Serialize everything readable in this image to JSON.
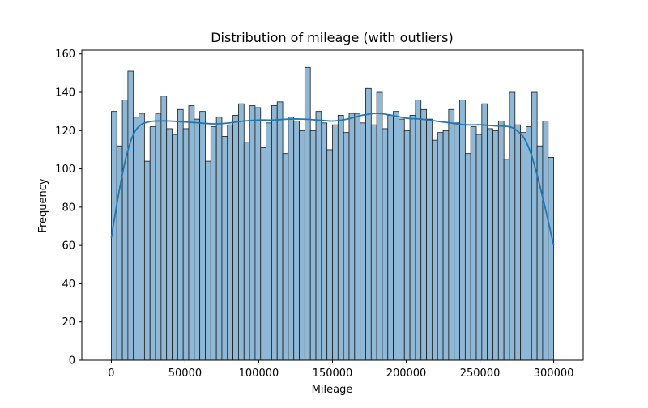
{
  "chart_data": {
    "type": "bar",
    "title": "Distribution of mileage (with outliers)",
    "xlabel": "Mileage",
    "ylabel": "Frequency",
    "xlim": [
      -20000,
      320000
    ],
    "ylim": [
      0,
      162
    ],
    "x_ticks": [
      {
        "value": 0,
        "label": "0"
      },
      {
        "value": 50000,
        "label": "50000"
      },
      {
        "value": 100000,
        "label": "100000"
      },
      {
        "value": 150000,
        "label": "150000"
      },
      {
        "value": 200000,
        "label": "200000"
      },
      {
        "value": 250000,
        "label": "250000"
      },
      {
        "value": 300000,
        "label": "300000"
      }
    ],
    "y_ticks": [
      {
        "value": 0,
        "label": "0"
      },
      {
        "value": 20,
        "label": "20"
      },
      {
        "value": 40,
        "label": "40"
      },
      {
        "value": 60,
        "label": "60"
      },
      {
        "value": 80,
        "label": "80"
      },
      {
        "value": 100,
        "label": "100"
      },
      {
        "value": 120,
        "label": "120"
      },
      {
        "value": 140,
        "label": "140"
      },
      {
        "value": 160,
        "label": "160"
      }
    ],
    "grid": false,
    "bin_start": 0,
    "bin_width": 3750,
    "counts": [
      130,
      112,
      136,
      151,
      127,
      129,
      104,
      122,
      129,
      138,
      121,
      118,
      131,
      121,
      133,
      126,
      130,
      104,
      122,
      127,
      117,
      123,
      128,
      134,
      114,
      133,
      132,
      111,
      124,
      133,
      135,
      108,
      127,
      125,
      120,
      153,
      120,
      130,
      124,
      110,
      123,
      128,
      119,
      129,
      129,
      124,
      142,
      123,
      140,
      121,
      128,
      130,
      126,
      120,
      128,
      136,
      131,
      126,
      115,
      119,
      120,
      131,
      124,
      136,
      108,
      122,
      118,
      134,
      121,
      120,
      125,
      105,
      140,
      123,
      119,
      122,
      140,
      112,
      125,
      106
    ],
    "kde": {
      "x": [
        0,
        5000,
        10000,
        15000,
        20000,
        25000,
        30000,
        40000,
        50000,
        60000,
        70000,
        80000,
        90000,
        100000,
        110000,
        120000,
        130000,
        140000,
        150000,
        160000,
        170000,
        180000,
        190000,
        200000,
        210000,
        220000,
        230000,
        240000,
        250000,
        260000,
        270000,
        275000,
        280000,
        285000,
        290000,
        295000,
        300000
      ],
      "y": [
        64,
        87,
        106,
        118,
        123,
        124.5,
        125,
        125,
        124.5,
        124,
        123.5,
        124,
        125,
        125.5,
        125.5,
        126,
        126,
        125.5,
        125,
        126,
        128,
        129,
        128,
        126.5,
        126,
        125,
        124,
        123,
        123,
        122.5,
        122,
        120,
        116,
        107,
        93,
        77,
        60
      ]
    },
    "colors": {
      "bar_fill": "#8fb8d6",
      "bar_edge": "#1a1a1a",
      "kde_line": "#1f77b4",
      "axes": "#000000",
      "background": "#ffffff"
    }
  }
}
